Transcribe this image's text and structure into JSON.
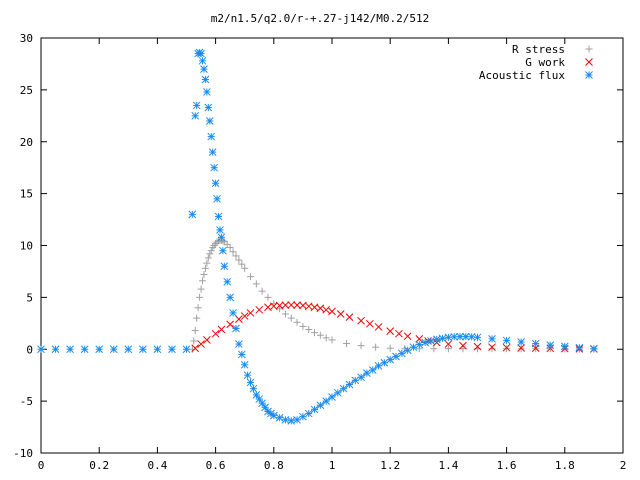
{
  "chart_data": {
    "type": "scatter",
    "title": "m2/n1.5/q2.0/r-+.27-j142/M0.2/512",
    "xlabel": "",
    "ylabel": "",
    "xlim": [
      0,
      2
    ],
    "ylim": [
      -10,
      30
    ],
    "x_ticks": [
      0,
      0.2,
      0.4,
      0.6,
      0.8,
      1,
      1.2,
      1.4,
      1.6,
      1.8,
      2
    ],
    "x_tick_labels": [
      "0",
      "0.2",
      "0.4",
      "0.6",
      "0.8",
      "1",
      "1.2",
      "1.4",
      "1.6",
      "1.8",
      "2"
    ],
    "y_ticks": [
      -10,
      -5,
      0,
      5,
      10,
      15,
      20,
      25,
      30
    ],
    "y_tick_labels": [
      "-10",
      "-5",
      "0",
      "5",
      "10",
      "15",
      "20",
      "25",
      "30"
    ],
    "grid": false,
    "legend_position": "top-right",
    "series": [
      {
        "name": "R stress",
        "marker": "plus",
        "color": "#a0a0a0",
        "points": [
          [
            0.52,
            0
          ],
          [
            0.525,
            0.8
          ],
          [
            0.53,
            1.8
          ],
          [
            0.535,
            3.0
          ],
          [
            0.54,
            4.0
          ],
          [
            0.545,
            5.0
          ],
          [
            0.55,
            5.8
          ],
          [
            0.555,
            6.6
          ],
          [
            0.56,
            7.2
          ],
          [
            0.565,
            7.8
          ],
          [
            0.57,
            8.3
          ],
          [
            0.575,
            8.8
          ],
          [
            0.58,
            9.2
          ],
          [
            0.585,
            9.5
          ],
          [
            0.59,
            9.8
          ],
          [
            0.595,
            10.0
          ],
          [
            0.6,
            10.2
          ],
          [
            0.605,
            10.35
          ],
          [
            0.61,
            10.45
          ],
          [
            0.615,
            10.5
          ],
          [
            0.62,
            10.5
          ],
          [
            0.625,
            10.45
          ],
          [
            0.63,
            10.35
          ],
          [
            0.64,
            10.1
          ],
          [
            0.65,
            9.8
          ],
          [
            0.66,
            9.4
          ],
          [
            0.67,
            9.0
          ],
          [
            0.68,
            8.6
          ],
          [
            0.69,
            8.2
          ],
          [
            0.7,
            7.8
          ],
          [
            0.72,
            7.0
          ],
          [
            0.74,
            6.3
          ],
          [
            0.76,
            5.6
          ],
          [
            0.78,
            5.0
          ],
          [
            0.8,
            4.4
          ],
          [
            0.82,
            3.9
          ],
          [
            0.84,
            3.4
          ],
          [
            0.86,
            3.0
          ],
          [
            0.88,
            2.6
          ],
          [
            0.9,
            2.2
          ],
          [
            0.92,
            1.9
          ],
          [
            0.94,
            1.6
          ],
          [
            0.96,
            1.35
          ],
          [
            0.98,
            1.1
          ],
          [
            1.0,
            0.9
          ],
          [
            1.05,
            0.55
          ],
          [
            1.1,
            0.35
          ],
          [
            1.15,
            0.2
          ],
          [
            1.2,
            0.1
          ],
          [
            1.25,
            0.05
          ],
          [
            1.3,
            0.05
          ],
          [
            1.35,
            0.05
          ],
          [
            1.4,
            0.05
          ],
          [
            1.45,
            0.05
          ],
          [
            1.5,
            0.05
          ],
          [
            1.55,
            0.05
          ],
          [
            1.6,
            0.05
          ],
          [
            1.65,
            0.05
          ],
          [
            1.7,
            0.05
          ],
          [
            1.75,
            0.05
          ],
          [
            1.8,
            0.03
          ],
          [
            1.85,
            0.02
          ],
          [
            1.9,
            0.01
          ]
        ]
      },
      {
        "name": "G work",
        "marker": "cross",
        "color": "#ff0000",
        "points": [
          [
            0.53,
            0.1
          ],
          [
            0.55,
            0.5
          ],
          [
            0.57,
            0.9
          ],
          [
            0.6,
            1.5
          ],
          [
            0.62,
            1.9
          ],
          [
            0.65,
            2.4
          ],
          [
            0.68,
            2.9
          ],
          [
            0.7,
            3.2
          ],
          [
            0.72,
            3.5
          ],
          [
            0.75,
            3.8
          ],
          [
            0.78,
            4.05
          ],
          [
            0.8,
            4.15
          ],
          [
            0.82,
            4.22
          ],
          [
            0.84,
            4.25
          ],
          [
            0.86,
            4.27
          ],
          [
            0.88,
            4.25
          ],
          [
            0.9,
            4.22
          ],
          [
            0.92,
            4.15
          ],
          [
            0.94,
            4.05
          ],
          [
            0.96,
            3.95
          ],
          [
            0.98,
            3.8
          ],
          [
            1.0,
            3.65
          ],
          [
            1.03,
            3.4
          ],
          [
            1.06,
            3.1
          ],
          [
            1.1,
            2.75
          ],
          [
            1.13,
            2.45
          ],
          [
            1.16,
            2.15
          ],
          [
            1.2,
            1.75
          ],
          [
            1.23,
            1.5
          ],
          [
            1.26,
            1.25
          ],
          [
            1.3,
            1.0
          ],
          [
            1.33,
            0.8
          ],
          [
            1.36,
            0.65
          ],
          [
            1.4,
            0.5
          ],
          [
            1.45,
            0.35
          ],
          [
            1.5,
            0.25
          ],
          [
            1.55,
            0.2
          ],
          [
            1.6,
            0.15
          ],
          [
            1.65,
            0.12
          ],
          [
            1.7,
            0.1
          ],
          [
            1.75,
            0.08
          ],
          [
            1.8,
            0.06
          ],
          [
            1.85,
            0.04
          ],
          [
            1.9,
            0.02
          ]
        ]
      },
      {
        "name": "Acoustic flux",
        "marker": "star",
        "color": "#1a8cf0",
        "points": [
          [
            0.0,
            0
          ],
          [
            0.05,
            0
          ],
          [
            0.1,
            0
          ],
          [
            0.15,
            0
          ],
          [
            0.2,
            0
          ],
          [
            0.25,
            0
          ],
          [
            0.3,
            0
          ],
          [
            0.35,
            0
          ],
          [
            0.4,
            0
          ],
          [
            0.45,
            0
          ],
          [
            0.5,
            0
          ],
          [
            0.52,
            13.0
          ],
          [
            0.53,
            22.5
          ],
          [
            0.535,
            23.5
          ],
          [
            0.54,
            28.5
          ],
          [
            0.545,
            28.6
          ],
          [
            0.55,
            28.5
          ],
          [
            0.555,
            27.8
          ],
          [
            0.56,
            27.0
          ],
          [
            0.565,
            26.0
          ],
          [
            0.57,
            24.8
          ],
          [
            0.575,
            23.3
          ],
          [
            0.58,
            22.0
          ],
          [
            0.585,
            20.5
          ],
          [
            0.59,
            19.0
          ],
          [
            0.595,
            17.5
          ],
          [
            0.6,
            16.0
          ],
          [
            0.605,
            14.5
          ],
          [
            0.61,
            12.8
          ],
          [
            0.615,
            11.5
          ],
          [
            0.62,
            10.8
          ],
          [
            0.625,
            9.5
          ],
          [
            0.63,
            8.0
          ],
          [
            0.64,
            6.5
          ],
          [
            0.65,
            5.0
          ],
          [
            0.66,
            3.5
          ],
          [
            0.67,
            2.0
          ],
          [
            0.68,
            0.5
          ],
          [
            0.69,
            -0.5
          ],
          [
            0.7,
            -1.5
          ],
          [
            0.71,
            -2.5
          ],
          [
            0.72,
            -3.2
          ],
          [
            0.73,
            -3.8
          ],
          [
            0.74,
            -4.4
          ],
          [
            0.75,
            -4.8
          ],
          [
            0.76,
            -5.2
          ],
          [
            0.77,
            -5.6
          ],
          [
            0.78,
            -6.0
          ],
          [
            0.79,
            -6.2
          ],
          [
            0.8,
            -6.4
          ],
          [
            0.82,
            -6.6
          ],
          [
            0.84,
            -6.8
          ],
          [
            0.86,
            -6.9
          ],
          [
            0.88,
            -6.8
          ],
          [
            0.9,
            -6.5
          ],
          [
            0.92,
            -6.2
          ],
          [
            0.94,
            -5.8
          ],
          [
            0.96,
            -5.4
          ],
          [
            0.98,
            -5.0
          ],
          [
            1.0,
            -4.6
          ],
          [
            1.02,
            -4.2
          ],
          [
            1.04,
            -3.8
          ],
          [
            1.06,
            -3.4
          ],
          [
            1.08,
            -3.0
          ],
          [
            1.1,
            -2.7
          ],
          [
            1.12,
            -2.3
          ],
          [
            1.14,
            -2.0
          ],
          [
            1.16,
            -1.6
          ],
          [
            1.18,
            -1.3
          ],
          [
            1.2,
            -1.0
          ],
          [
            1.22,
            -0.7
          ],
          [
            1.24,
            -0.4
          ],
          [
            1.26,
            -0.1
          ],
          [
            1.28,
            0.2
          ],
          [
            1.3,
            0.45
          ],
          [
            1.32,
            0.65
          ],
          [
            1.34,
            0.8
          ],
          [
            1.36,
            0.95
          ],
          [
            1.38,
            1.05
          ],
          [
            1.4,
            1.15
          ],
          [
            1.42,
            1.2
          ],
          [
            1.44,
            1.22
          ],
          [
            1.46,
            1.22
          ],
          [
            1.48,
            1.2
          ],
          [
            1.5,
            1.15
          ],
          [
            1.55,
            1.0
          ],
          [
            1.6,
            0.85
          ],
          [
            1.65,
            0.7
          ],
          [
            1.7,
            0.55
          ],
          [
            1.75,
            0.4
          ],
          [
            1.8,
            0.28
          ],
          [
            1.85,
            0.15
          ],
          [
            1.9,
            0.05
          ]
        ]
      }
    ]
  }
}
